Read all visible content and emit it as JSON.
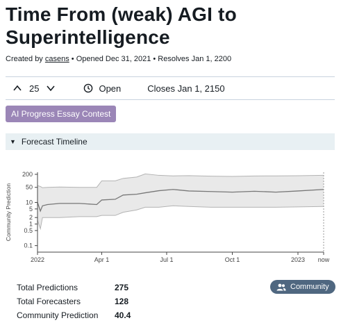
{
  "question": {
    "title": "Time From (weak) AGI to Superintelligence",
    "created_prefix": "Created by ",
    "author": "casens",
    "opened": " • Opened Dec 31, 2021",
    "resolves": " • Resolves Jan 1, 2200"
  },
  "toolbar": {
    "vote_count": "25",
    "status": "Open",
    "closes": "Closes Jan 1, 2150"
  },
  "tag": "AI Progress Essay Contest",
  "forecast_header": "Forecast Timeline",
  "community_button": "Community",
  "stats": [
    {
      "label": "Total Predictions",
      "value": "275"
    },
    {
      "label": "Total Forecasters",
      "value": "128"
    },
    {
      "label": "Community Prediction",
      "value": "40.4"
    }
  ],
  "chart_data": {
    "type": "line",
    "ylabel": "Community Prediction",
    "y_scale": "log",
    "ylim": [
      0.05,
      250
    ],
    "yticks": [
      {
        "label": "200",
        "value": 200
      },
      {
        "label": "50",
        "value": 50
      },
      {
        "label": "10",
        "value": 10
      },
      {
        "label": "5",
        "value": 5
      },
      {
        "label": "2",
        "value": 2
      },
      {
        "label": "1",
        "value": 1
      },
      {
        "label": "0.5",
        "value": 0.5
      },
      {
        "label": "0.1",
        "value": 0.1
      }
    ],
    "xticks": [
      {
        "label": "2022",
        "date": "2022-01-01"
      },
      {
        "label": "Apr 1",
        "date": "2022-04-01"
      },
      {
        "label": "Jul 1",
        "date": "2022-07-01"
      },
      {
        "label": "Oct 1",
        "date": "2022-10-01"
      },
      {
        "label": "2023",
        "date": "2023-01-01"
      },
      {
        "label": "now",
        "date": "2023-02-06"
      }
    ],
    "x": [
      "2022-01-01",
      "2022-01-05",
      "2022-01-08",
      "2022-01-15",
      "2022-02-01",
      "2022-03-01",
      "2022-03-25",
      "2022-04-01",
      "2022-04-20",
      "2022-05-01",
      "2022-05-20",
      "2022-06-01",
      "2022-06-20",
      "2022-07-10",
      "2022-08-01",
      "2022-09-01",
      "2022-10-01",
      "2022-11-01",
      "2022-12-01",
      "2023-01-01",
      "2023-02-06"
    ],
    "series": [
      {
        "values": [
          10,
          4,
          7,
          8,
          9,
          9,
          8,
          13,
          14,
          22,
          24,
          28,
          35,
          40,
          34,
          32,
          30,
          33,
          30,
          34,
          40
        ]
      }
    ],
    "band_upper": [
      60,
      55,
      48,
      50,
      52,
      50,
      50,
      100,
      100,
      130,
      150,
      210,
      180,
      170,
      175,
      165,
      160,
      168,
      170,
      172,
      180
    ],
    "band_lower": [
      1.5,
      0.6,
      2,
      2,
      2,
      2.2,
      2.2,
      2.5,
      2.5,
      3.5,
      4.5,
      6,
      6,
      7,
      6.5,
      6,
      6,
      6,
      6,
      6.2,
      6.5
    ],
    "grid": false,
    "colors": {
      "line": "#777777",
      "band": "#e9e9e9",
      "band_edge": "#b3b3b3",
      "axis": "#444444"
    }
  }
}
